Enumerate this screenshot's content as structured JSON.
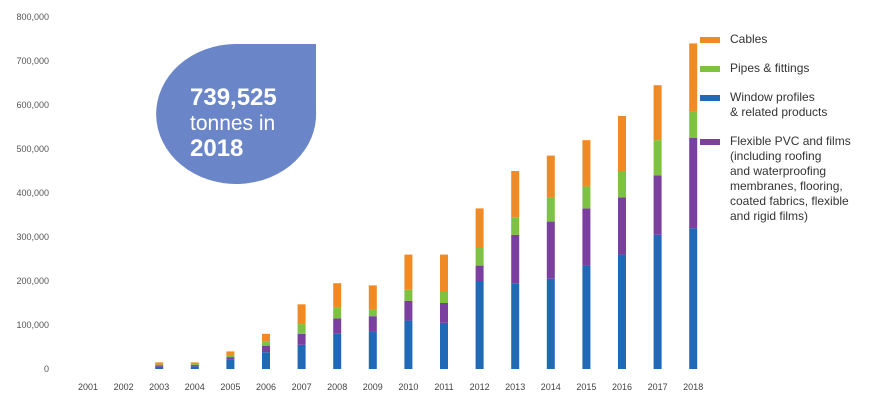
{
  "callout": {
    "line1": "739,525",
    "line2": "tonnes in",
    "line3": "2018",
    "color": "#6a85c8"
  },
  "legend": [
    {
      "label": "Cables",
      "color": "#f08a24"
    },
    {
      "label": "Pipes & fittings",
      "color": "#7dc241"
    },
    {
      "label": "Window profiles\n& related products",
      "color": "#1f69b6"
    },
    {
      "label": "Flexible PVC and films\n(including roofing\nand waterproofing\nmembranes, flooring,\ncoated fabrics, flexible\nand rigid films)",
      "color": "#7b3fa0"
    }
  ],
  "chart_data": {
    "type": "bar",
    "stacked": true,
    "categories": [
      "2001",
      "2002",
      "2003",
      "2004",
      "2005",
      "2006",
      "2007",
      "2008",
      "2009",
      "2010",
      "2011",
      "2012",
      "2013",
      "2014",
      "2015",
      "2016",
      "2017",
      "2018"
    ],
    "ylim": [
      0,
      800000
    ],
    "yticks": [
      0,
      100000,
      200000,
      300000,
      400000,
      500000,
      600000,
      700000,
      800000
    ],
    "ytick_labels": [
      "0",
      "100,000",
      "200,000",
      "300,000",
      "400,000",
      "500,000",
      "600,000",
      "700,000",
      "800,000"
    ],
    "grid": false,
    "series": [
      {
        "name": "Window profiles & related products",
        "color": "#1f69b6",
        "values": [
          0,
          0,
          5000,
          6000,
          22000,
          38000,
          55000,
          80000,
          85000,
          110000,
          105000,
          200000,
          195000,
          205000,
          235000,
          260000,
          305000,
          320000
        ]
      },
      {
        "name": "Flexible PVC and films (including roofing and waterproofing membranes, flooring, coated fabrics, flexible and rigid films)",
        "color": "#7b3fa0",
        "values": [
          0,
          0,
          3000,
          3000,
          5000,
          15000,
          25000,
          35000,
          35000,
          45000,
          45000,
          35000,
          110000,
          130000,
          130000,
          130000,
          135000,
          205000
        ]
      },
      {
        "name": "Pipes & fittings",
        "color": "#7dc241",
        "values": [
          0,
          0,
          2000,
          2000,
          5000,
          10000,
          22000,
          25000,
          15000,
          25000,
          25000,
          40000,
          40000,
          55000,
          50000,
          60000,
          80000,
          60000
        ]
      },
      {
        "name": "Cables",
        "color": "#f08a24",
        "values": [
          0,
          0,
          5000,
          4000,
          8000,
          17000,
          45000,
          55000,
          55000,
          80000,
          85000,
          90000,
          105000,
          95000,
          105000,
          125000,
          125000,
          155000
        ]
      }
    ]
  }
}
